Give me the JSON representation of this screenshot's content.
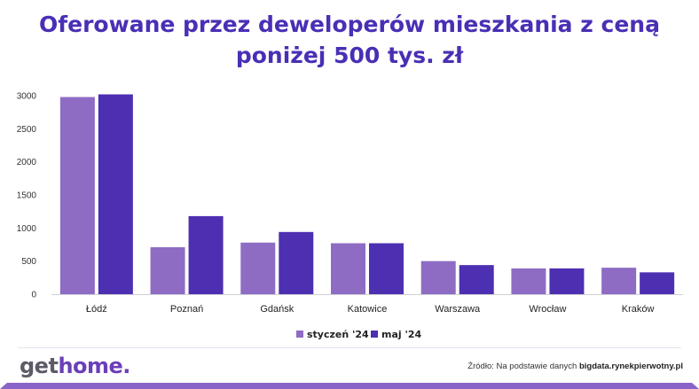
{
  "title_line1": "Oferowane przez deweloperów mieszkania z ceną",
  "title_line2": "poniżej 500 tys. zł",
  "source_prefix": "Źródło: Na podstawie danych",
  "source_site": "bigdata.rynekpierwotny.pl",
  "logo_get": "get",
  "logo_home": "home",
  "logo_dot": ".",
  "chart_data": {
    "type": "bar",
    "title": "Oferowane przez deweloperów mieszkania z ceną poniżej 500 tys. zł",
    "categories": [
      "Łódź",
      "Poznań",
      "Gdańsk",
      "Katowice",
      "Warszawa",
      "Wrocław",
      "Kraków"
    ],
    "series": [
      {
        "name": "styczeń '24",
        "color": "#8e6cc4",
        "values": [
          2980,
          710,
          780,
          770,
          500,
          390,
          400
        ]
      },
      {
        "name": "maj '24",
        "color": "#4d2fb1",
        "values": [
          3020,
          1180,
          940,
          770,
          440,
          390,
          330
        ]
      }
    ],
    "yticks": [
      0,
      500,
      1000,
      1500,
      2000,
      2500,
      3000
    ],
    "ylim": [
      0,
      3000
    ],
    "grid": false,
    "legend_position": "bottom-center"
  }
}
